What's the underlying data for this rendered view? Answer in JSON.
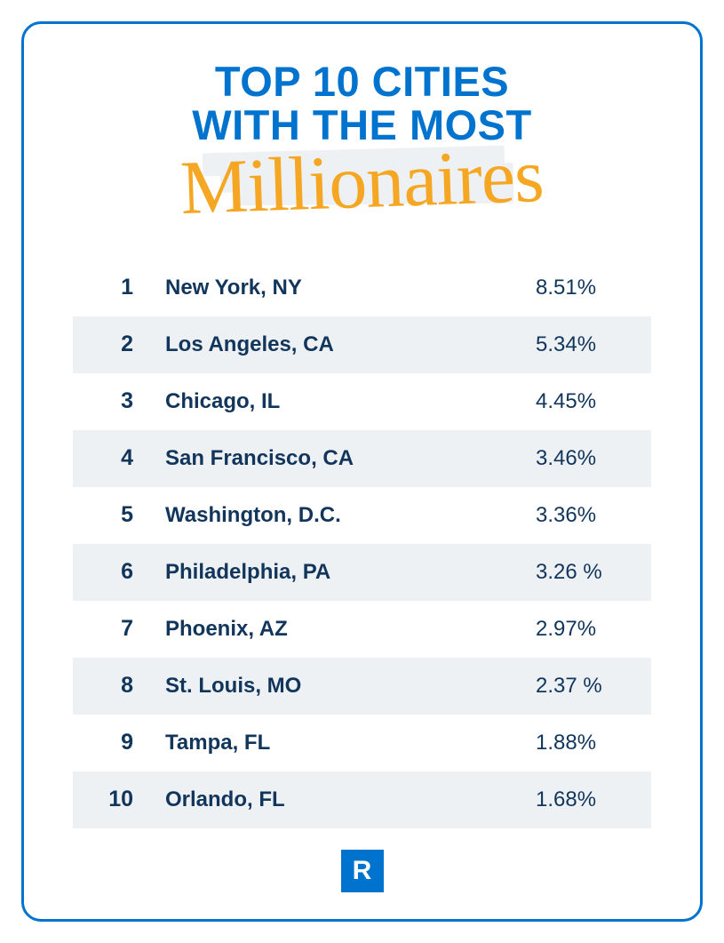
{
  "type": "infographic",
  "background_color": "#ffffff",
  "card": {
    "border_color": "#0073cf",
    "border_width": 3,
    "border_radius": 22
  },
  "title": {
    "line1": "TOP 10 CITIES",
    "line2": "WITH THE MOST",
    "color": "#0073cf",
    "fontsize": 47,
    "font_weight": 900
  },
  "script_word": {
    "text": "Millionaires",
    "color": "#f5a623",
    "fontsize": 86,
    "brush_background_color": "#eef1f4"
  },
  "list": {
    "rank_color": "#12355b",
    "city_color": "#12355b",
    "pct_color": "#12355b",
    "row_alt_background": "#eef1f4",
    "rank_fontsize": 25,
    "city_fontsize": 24,
    "pct_fontsize": 24,
    "rows": [
      {
        "rank": "1",
        "city": "New York, NY",
        "pct": "8.51%"
      },
      {
        "rank": "2",
        "city": "Los Angeles, CA",
        "pct": "5.34%"
      },
      {
        "rank": "3",
        "city": "Chicago, IL",
        "pct": "4.45%"
      },
      {
        "rank": "4",
        "city": "San Francisco, CA",
        "pct": "3.46%"
      },
      {
        "rank": "5",
        "city": "Washington, D.C.",
        "pct": "3.36%"
      },
      {
        "rank": "6",
        "city": "Philadelphia, PA",
        "pct": "3.26 %"
      },
      {
        "rank": "7",
        "city": "Phoenix, AZ",
        "pct": "2.97%"
      },
      {
        "rank": "8",
        "city": "St. Louis, MO",
        "pct": "2.37 %"
      },
      {
        "rank": "9",
        "city": "Tampa, FL",
        "pct": "1.88%"
      },
      {
        "rank": "10",
        "city": "Orlando, FL",
        "pct": "1.68%"
      }
    ]
  },
  "logo": {
    "letter": "R",
    "bg_color": "#0073cf",
    "letter_color": "#ffffff"
  }
}
